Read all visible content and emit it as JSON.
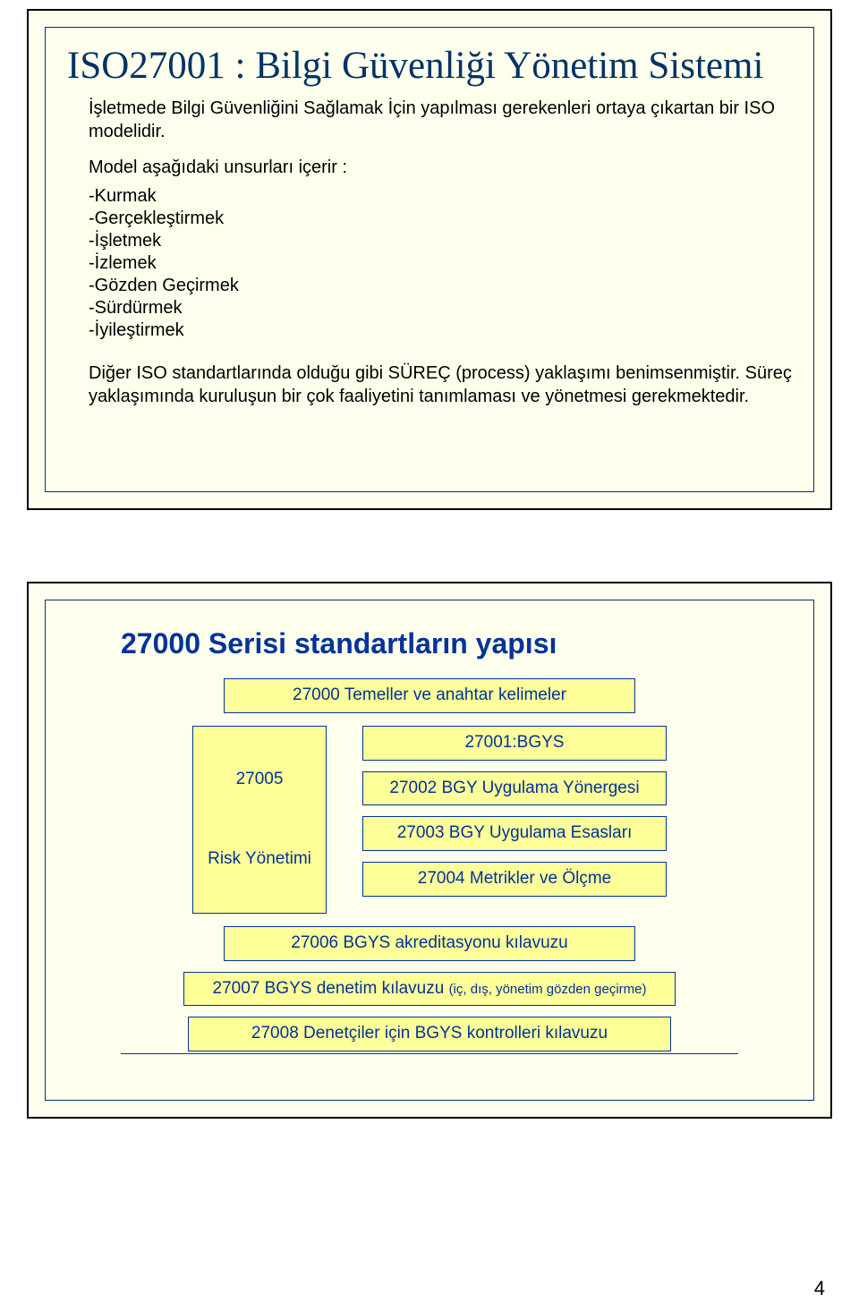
{
  "slide1": {
    "title": "ISO27001 : Bilgi Güvenliği Yönetim Sistemi",
    "intro": "İşletmede Bilgi Güvenliğini Sağlamak İçin yapılması gerekenleri ortaya çıkartan bir ISO modelidir.",
    "sub": "Model aşağıdaki unsurları içerir :",
    "bullets": {
      "b0": "-Kurmak",
      "b1": "-Gerçekleştirmek",
      "b2": "-İşletmek",
      "b3": "-İzlemek",
      "b4": "-Gözden Geçirmek",
      "b5": "-Sürdürmek",
      "b6": "-İyileştirmek"
    },
    "foot": "Diğer ISO standartlarında olduğu gibi SÜREÇ (process) yaklaşımı benimsenmiştir. Süreç yaklaşımında kuruluşun bir çok faaliyetini tanımlaması ve yönetmesi gerekmektedir."
  },
  "slide2": {
    "title": "27000 Serisi standartların yapısı",
    "top": "27000 Temeller ve anahtar kelimeler",
    "left": {
      "a": "27005",
      "b": "Risk Yönetimi"
    },
    "right": {
      "r0": "27001:BGYS",
      "r1": "27002 BGY Uygulama Yönergesi",
      "r2": "27003 BGY Uygulama Esasları",
      "r3": "27004 Metrikler ve Ölçme"
    },
    "wide": {
      "w0": "27006 BGYS akreditasyonu kılavuzu",
      "w1_main": "27007 BGYS denetim kılavuzu",
      "w1_note": "(iç, dış, yönetim gözden geçirme)",
      "w2": "27008 Denetçiler için BGYS kontrolleri kılavuzu"
    }
  },
  "layout": {
    "colors": {
      "slide_bg": "#ffffed",
      "box_bg": "#ffff99",
      "border": "#003399",
      "title_navy": "#003366"
    }
  },
  "page_number": "4"
}
